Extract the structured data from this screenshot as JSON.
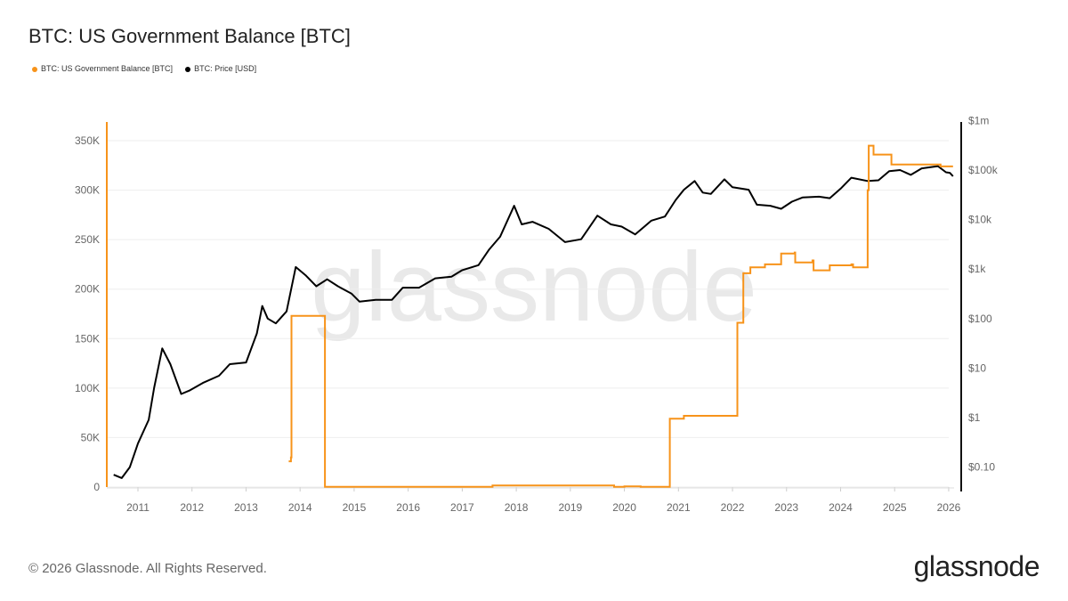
{
  "title": "BTC: US Government Balance [BTC]",
  "footer": "© 2026 Glassnode. All Rights Reserved.",
  "logo": "glassnode",
  "watermark": "glassnode",
  "chart_data": {
    "type": "line",
    "title": "BTC: US Government Balance [BTC]",
    "legend": [
      {
        "name": "BTC: US Government Balance [BTC]",
        "color": "#f7931a"
      },
      {
        "name": "BTC: Price [USD]",
        "color": "#000000"
      }
    ],
    "legend_placement": "top-left",
    "x_ticks": [
      "2011",
      "2012",
      "2013",
      "2014",
      "2015",
      "2016",
      "2017",
      "2018",
      "2019",
      "2020",
      "2021",
      "2022",
      "2023",
      "2024",
      "2025",
      "2026"
    ],
    "xlim": [
      2010.45,
      2026.1
    ],
    "y_left": {
      "ticks": [
        0,
        50000,
        100000,
        150000,
        200000,
        250000,
        300000,
        350000
      ],
      "tick_labels": [
        "0",
        "50K",
        "100K",
        "150K",
        "200K",
        "250K",
        "300K",
        "350K"
      ],
      "ylim": [
        0,
        370000
      ]
    },
    "y_right": {
      "scale": "log",
      "ticks": [
        0.1,
        1,
        10,
        100,
        1000,
        10000,
        100000,
        1000000
      ],
      "tick_labels": [
        "$0.10",
        "$1",
        "$10",
        "$100",
        "$1k",
        "$10k",
        "$100k",
        "$1m"
      ],
      "ylim": [
        0.04,
        1000000
      ]
    },
    "grid": true,
    "series": [
      {
        "name": "BTC: US Government Balance [BTC]",
        "axis": "left",
        "step": true,
        "points": [
          [
            2013.79,
            26000
          ],
          [
            2013.83,
            30000
          ],
          [
            2013.84,
            173000
          ],
          [
            2014.45,
            173000
          ],
          [
            2014.46,
            200
          ],
          [
            2017.55,
            200
          ],
          [
            2017.56,
            1500
          ],
          [
            2019.8,
            1500
          ],
          [
            2019.81,
            200
          ],
          [
            2020.0,
            700
          ],
          [
            2020.3,
            300
          ],
          [
            2020.83,
            300
          ],
          [
            2020.84,
            69000
          ],
          [
            2021.1,
            72000
          ],
          [
            2022.08,
            72000
          ],
          [
            2022.09,
            166000
          ],
          [
            2022.2,
            216000
          ],
          [
            2022.33,
            222000
          ],
          [
            2022.6,
            225000
          ],
          [
            2022.9,
            236000
          ],
          [
            2023.15,
            237000
          ],
          [
            2023.16,
            227000
          ],
          [
            2023.48,
            229000
          ],
          [
            2023.5,
            219000
          ],
          [
            2023.8,
            224000
          ],
          [
            2024.2,
            225000
          ],
          [
            2024.23,
            222000
          ],
          [
            2024.48,
            222000
          ],
          [
            2024.5,
            300000
          ],
          [
            2024.52,
            345000
          ],
          [
            2024.6,
            345000
          ],
          [
            2024.61,
            336000
          ],
          [
            2024.93,
            336000
          ],
          [
            2024.94,
            326000
          ],
          [
            2025.84,
            326000
          ],
          [
            2025.85,
            324000
          ],
          [
            2026.08,
            324000
          ]
        ]
      },
      {
        "name": "BTC: Price [USD]",
        "axis": "right",
        "points": [
          [
            2010.55,
            0.07
          ],
          [
            2010.7,
            0.06
          ],
          [
            2010.85,
            0.1
          ],
          [
            2011.0,
            0.3
          ],
          [
            2011.2,
            0.9
          ],
          [
            2011.3,
            4
          ],
          [
            2011.45,
            25
          ],
          [
            2011.6,
            12
          ],
          [
            2011.8,
            3
          ],
          [
            2011.95,
            3.5
          ],
          [
            2012.2,
            5
          ],
          [
            2012.5,
            7
          ],
          [
            2012.7,
            12
          ],
          [
            2013.0,
            13
          ],
          [
            2013.2,
            50
          ],
          [
            2013.3,
            180
          ],
          [
            2013.4,
            100
          ],
          [
            2013.55,
            80
          ],
          [
            2013.75,
            140
          ],
          [
            2013.92,
            1100
          ],
          [
            2014.1,
            750
          ],
          [
            2014.3,
            450
          ],
          [
            2014.5,
            620
          ],
          [
            2014.7,
            450
          ],
          [
            2014.95,
            320
          ],
          [
            2015.1,
            220
          ],
          [
            2015.4,
            240
          ],
          [
            2015.7,
            240
          ],
          [
            2015.9,
            420
          ],
          [
            2016.2,
            420
          ],
          [
            2016.5,
            650
          ],
          [
            2016.8,
            700
          ],
          [
            2017.0,
            950
          ],
          [
            2017.3,
            1200
          ],
          [
            2017.5,
            2500
          ],
          [
            2017.7,
            4500
          ],
          [
            2017.96,
            19000
          ],
          [
            2018.1,
            8000
          ],
          [
            2018.3,
            9000
          ],
          [
            2018.6,
            6500
          ],
          [
            2018.9,
            3500
          ],
          [
            2019.2,
            4000
          ],
          [
            2019.5,
            12000
          ],
          [
            2019.75,
            8000
          ],
          [
            2019.95,
            7200
          ],
          [
            2020.2,
            5000
          ],
          [
            2020.5,
            9500
          ],
          [
            2020.75,
            11500
          ],
          [
            2020.95,
            25000
          ],
          [
            2021.1,
            40000
          ],
          [
            2021.3,
            60000
          ],
          [
            2021.45,
            35000
          ],
          [
            2021.6,
            33000
          ],
          [
            2021.85,
            65000
          ],
          [
            2022.0,
            45000
          ],
          [
            2022.3,
            40000
          ],
          [
            2022.45,
            20000
          ],
          [
            2022.7,
            19000
          ],
          [
            2022.9,
            16500
          ],
          [
            2023.1,
            23000
          ],
          [
            2023.3,
            28000
          ],
          [
            2023.6,
            29000
          ],
          [
            2023.8,
            27000
          ],
          [
            2024.0,
            42000
          ],
          [
            2024.2,
            70000
          ],
          [
            2024.5,
            60000
          ],
          [
            2024.7,
            62000
          ],
          [
            2024.9,
            95000
          ],
          [
            2025.1,
            100000
          ],
          [
            2025.3,
            80000
          ],
          [
            2025.5,
            108000
          ],
          [
            2025.8,
            120000
          ],
          [
            2025.95,
            90000
          ],
          [
            2026.02,
            88000
          ],
          [
            2026.08,
            75000
          ]
        ]
      }
    ]
  }
}
